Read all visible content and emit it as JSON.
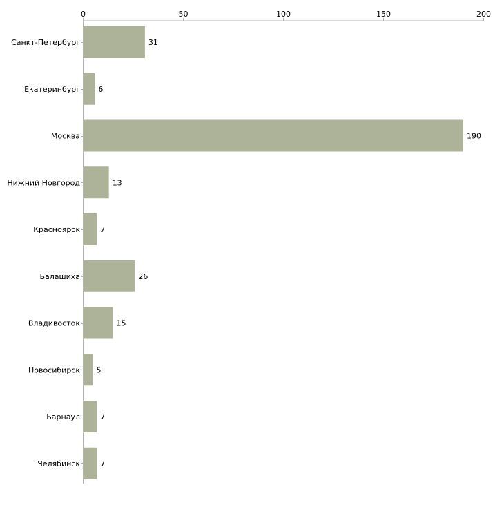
{
  "chart_data": {
    "type": "bar",
    "orientation": "horizontal",
    "title": "",
    "xlabel": "",
    "ylabel": "",
    "xlim": [
      0,
      200
    ],
    "x_ticks": [
      0,
      50,
      100,
      150,
      200
    ],
    "x_tick_labels": [
      "0",
      "50",
      "100",
      "150",
      "200"
    ],
    "x_axis_position": "top",
    "grid": false,
    "legend": "none",
    "categories": [
      "Санкт-Петербург",
      "Екатеринбург",
      "Москва",
      "Нижний Новгород",
      "Красноярск",
      "Балашиха",
      "Владивосток",
      "Новосибирск",
      "Барнаул",
      "Челябинск"
    ],
    "values": [
      31,
      6,
      190,
      13,
      7,
      26,
      15,
      5,
      7,
      7
    ],
    "value_labels": [
      "31",
      "6",
      "190",
      "13",
      "7",
      "26",
      "15",
      "5",
      "7",
      "7"
    ],
    "colors": {
      "bar": "#adb398",
      "axis": "#b3b3b3",
      "text": "#000000"
    }
  }
}
